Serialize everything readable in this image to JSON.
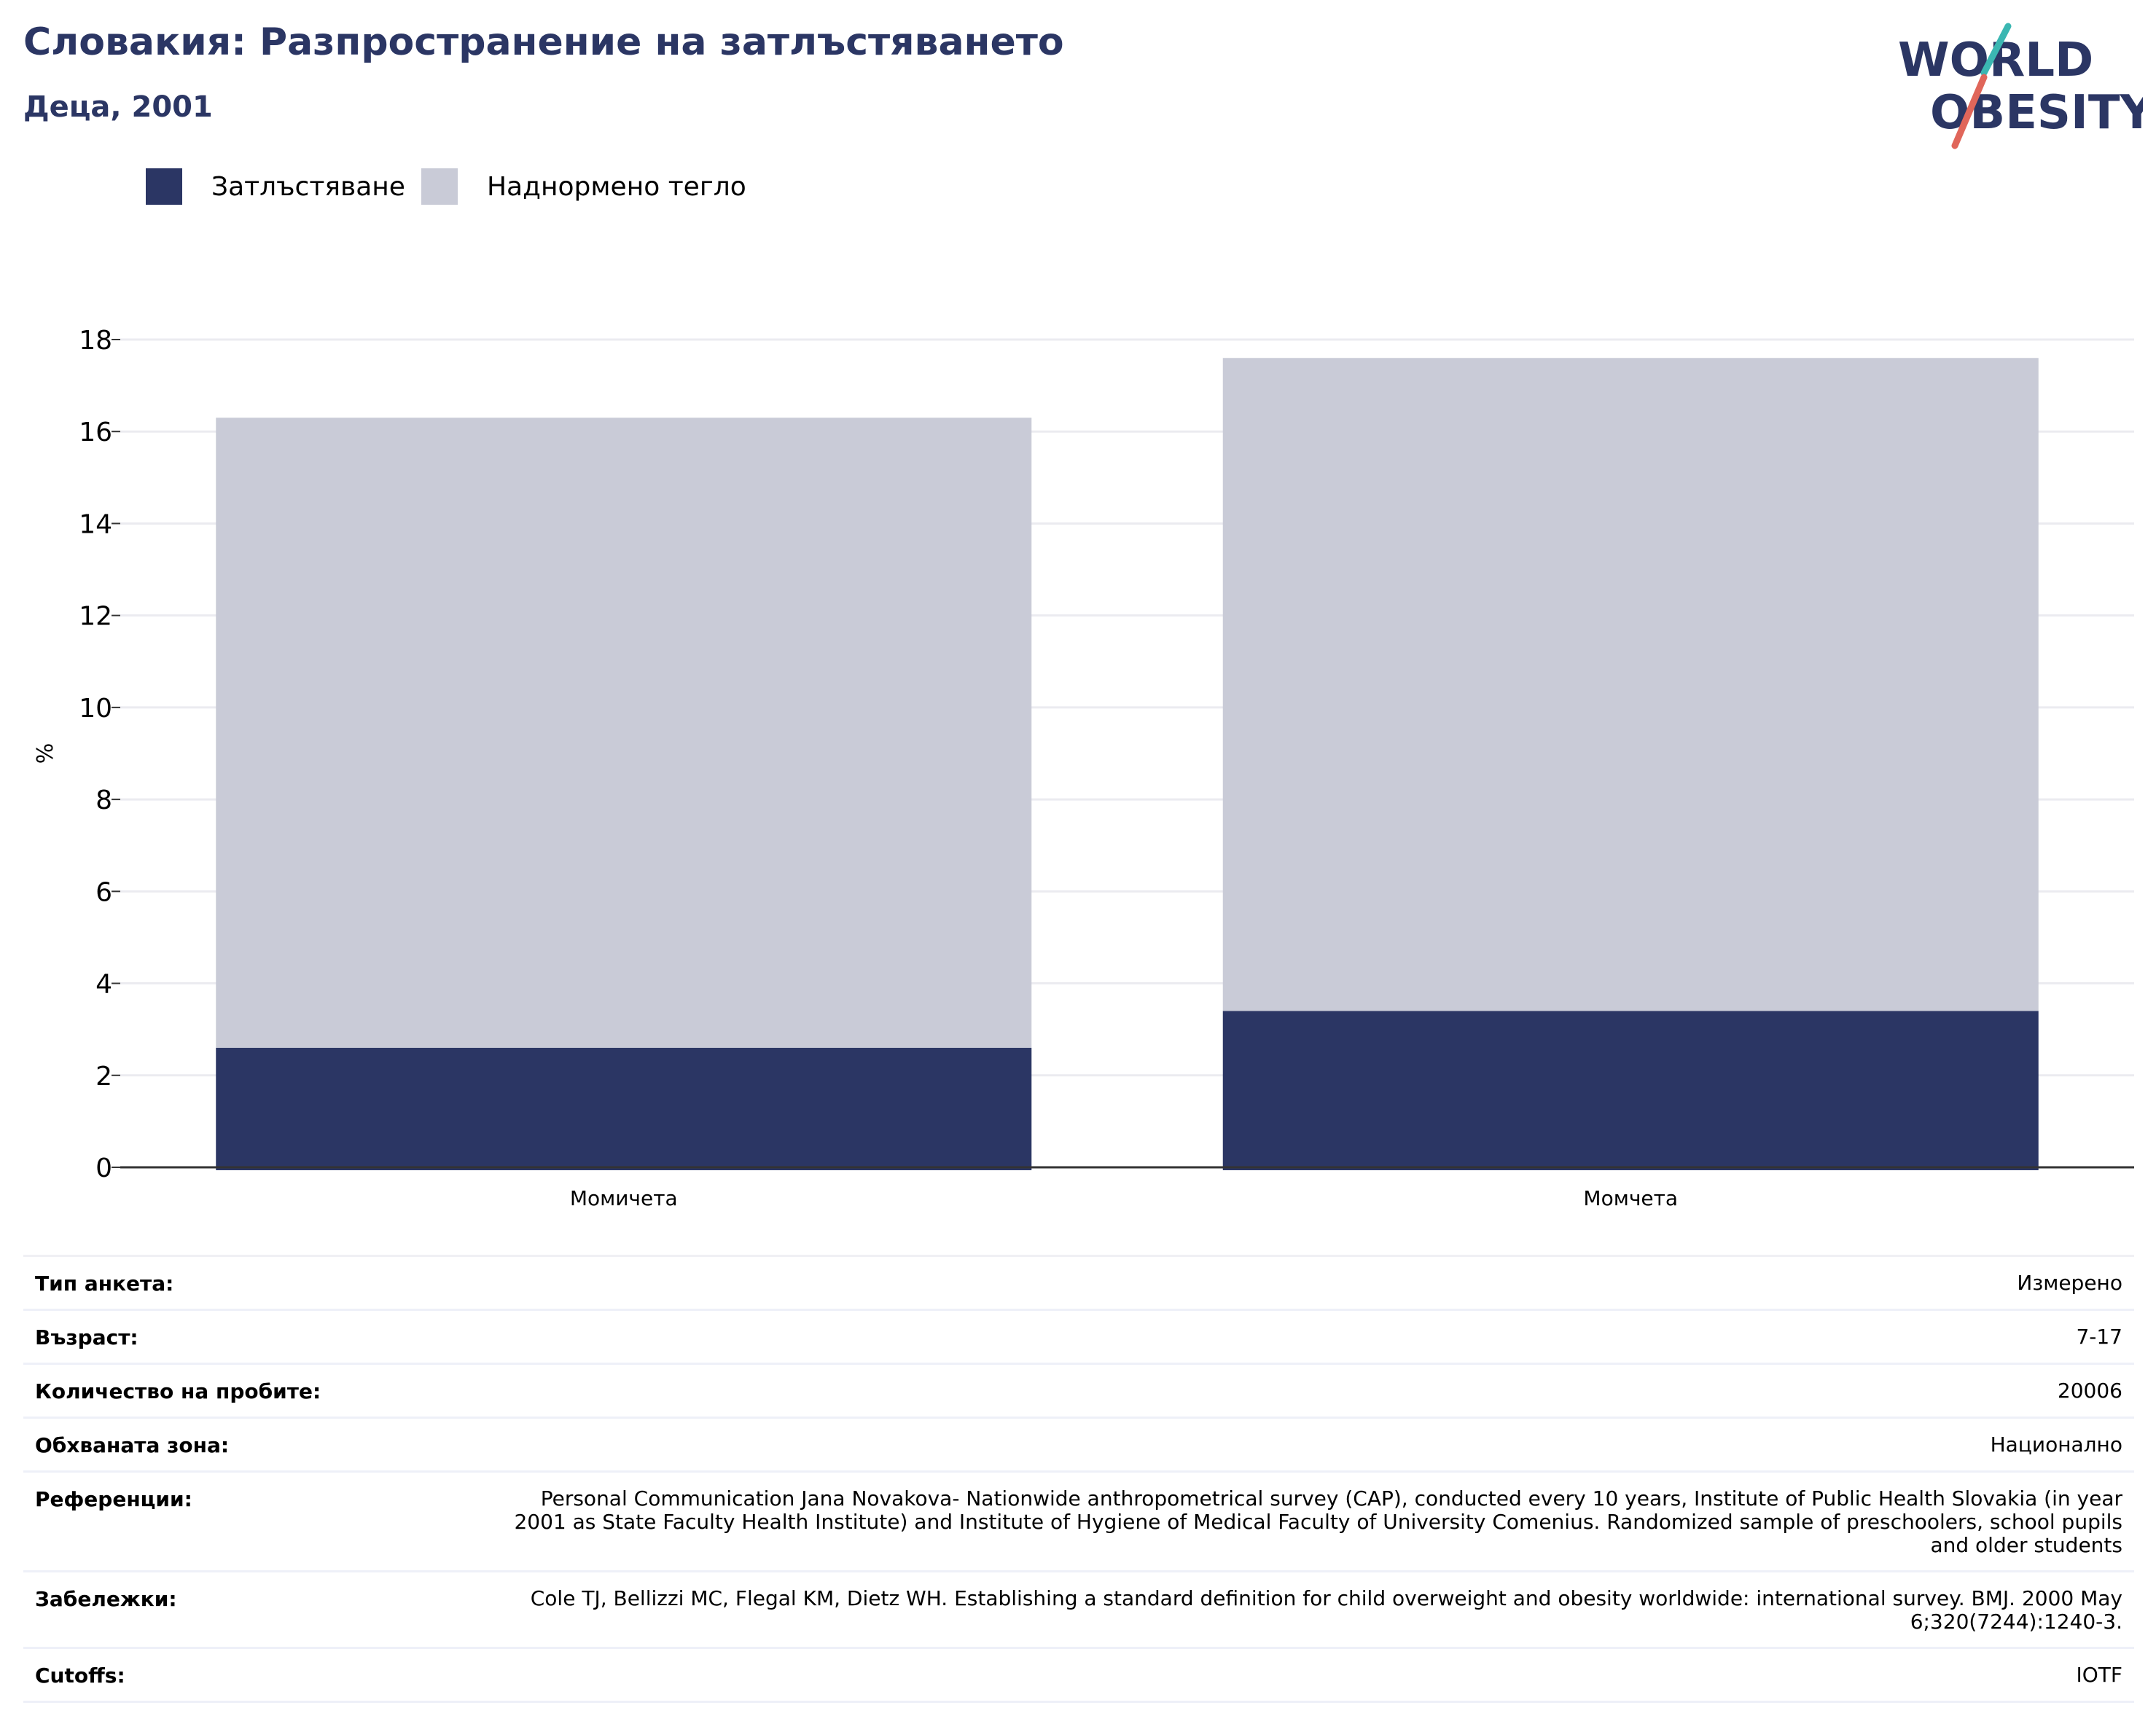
{
  "header": {
    "title": "Словакия: Разпространение на затлъстяването",
    "subtitle": "Деца, 2001"
  },
  "logo": {
    "line1": "WORLD",
    "line2": "OBESITY"
  },
  "legend": {
    "items": [
      {
        "label": "Затлъстяване",
        "color": "#2b3664"
      },
      {
        "label": "Наднормено тегло",
        "color": "#c9cbd7"
      }
    ]
  },
  "chart_data": {
    "type": "bar",
    "stacked": true,
    "categories": [
      "Момичета",
      "Момчета"
    ],
    "series": [
      {
        "name": "Затлъстяване",
        "values": [
          2.6,
          3.4
        ],
        "color": "#2b3664"
      },
      {
        "name": "Наднормено тегло",
        "values": [
          13.7,
          14.2
        ],
        "color": "#c9cbd7"
      }
    ],
    "ylabel": "%",
    "ylim": [
      0,
      18
    ],
    "yticks": [
      0,
      2,
      4,
      6,
      8,
      10,
      12,
      14,
      16,
      18
    ],
    "grid": true,
    "legend_position": "top-left"
  },
  "info": {
    "rows": [
      {
        "label": "Тип анкета:",
        "value": "Измерено"
      },
      {
        "label": "Възраст:",
        "value": "7-17"
      },
      {
        "label": "Количество на пробите:",
        "value": "20006"
      },
      {
        "label": "Обхваната зона:",
        "value": "Национално"
      },
      {
        "label": "Референции:",
        "value": "Personal Communication Jana Novakova- Nationwide anthropometrical survey (CAP), conducted every 10 years, Institute of Public Health Slovakia (in year 2001 as State Faculty Health Institute) and Institute of Hygiene of Medical Faculty of University Comenius. Randomized sample of preschoolers, school pupils and older students"
      },
      {
        "label": "Забележки:",
        "value": "Cole TJ, Bellizzi MC, Flegal KM, Dietz WH. Establishing a standard definition for child overweight and obesity worldwide: international survey. BMJ. 2000 May 6;320(7244):1240-3."
      },
      {
        "label": "Cutoffs:",
        "value": "IOTF"
      }
    ]
  }
}
